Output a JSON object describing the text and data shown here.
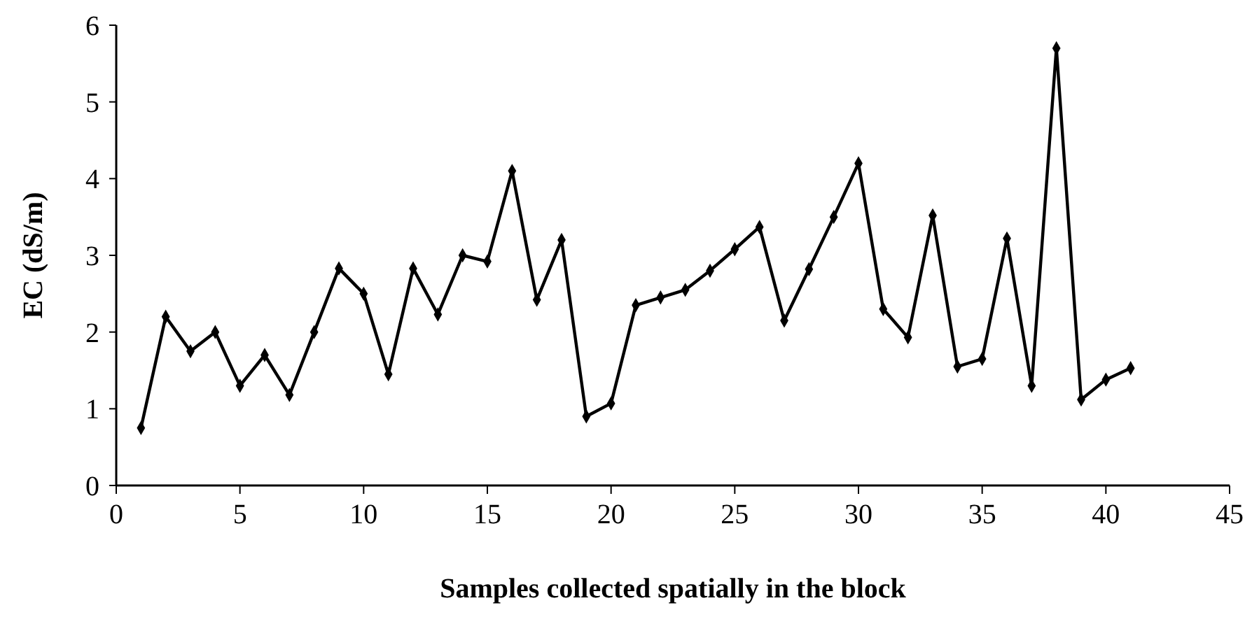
{
  "chart_data": {
    "type": "line",
    "xlabel": "Samples collected spatially in the block",
    "ylabel": "EC (dS/m)",
    "x": [
      1,
      2,
      3,
      4,
      5,
      6,
      7,
      8,
      9,
      10,
      11,
      12,
      13,
      14,
      15,
      16,
      17,
      18,
      19,
      20,
      21,
      22,
      23,
      24,
      25,
      26,
      27,
      28,
      29,
      30,
      31,
      32,
      33,
      34,
      35,
      36,
      37,
      38,
      39,
      40,
      41
    ],
    "series": [
      {
        "color": "#000000",
        "values": [
          0.75,
          2.2,
          1.75,
          2.0,
          1.3,
          1.7,
          1.18,
          2.0,
          2.83,
          2.5,
          1.45,
          2.83,
          2.23,
          3.0,
          2.92,
          4.1,
          2.42,
          3.2,
          0.9,
          1.07,
          2.35,
          2.45,
          2.55,
          2.8,
          3.08,
          3.37,
          2.15,
          2.82,
          3.5,
          4.2,
          2.3,
          1.93,
          3.52,
          1.55,
          1.65,
          3.22,
          1.3,
          5.7,
          1.12,
          1.38,
          1.53
        ]
      }
    ],
    "xlim": [
      0,
      45
    ],
    "xticks": [
      0,
      5,
      10,
      15,
      20,
      25,
      30,
      35,
      40,
      45
    ],
    "ylim": [
      0,
      6
    ],
    "yticks": [
      0,
      1,
      2,
      3,
      4,
      5,
      6
    ],
    "marker": "diamond",
    "line_style": "solid",
    "grid": false
  }
}
